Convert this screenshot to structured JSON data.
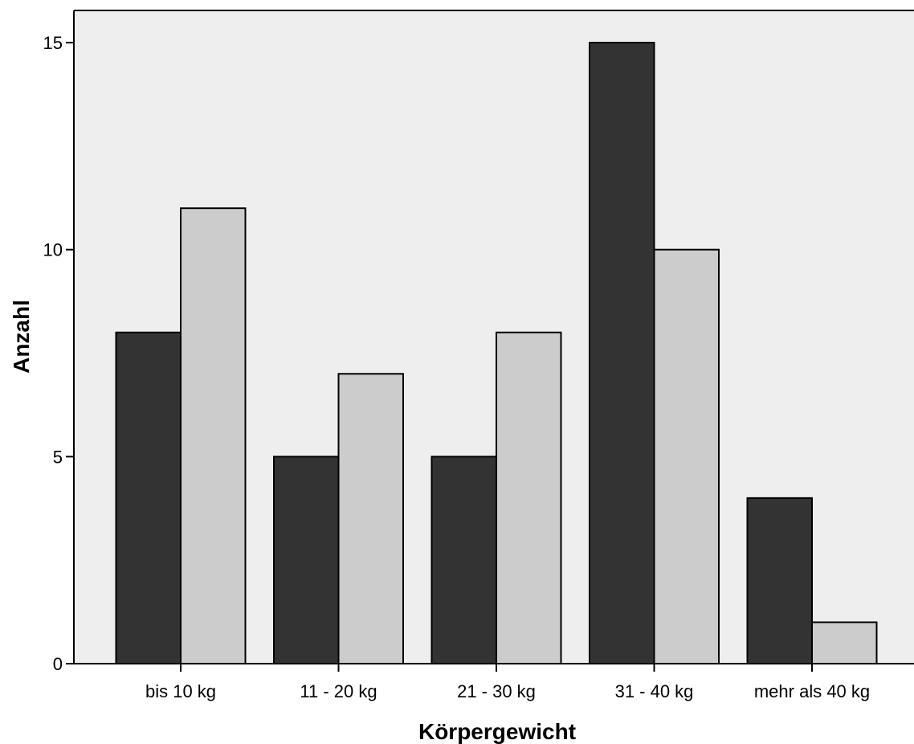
{
  "chart_data": {
    "type": "bar",
    "title": "",
    "xlabel": "Körpergewicht",
    "ylabel": "Anzahl",
    "categories": [
      "bis 10 kg",
      "11 - 20 kg",
      "21 - 30 kg",
      "31 - 40 kg",
      "mehr als 40 kg"
    ],
    "series": [
      {
        "values": [
          8,
          5,
          5,
          15,
          4
        ],
        "color": "#333333"
      },
      {
        "values": [
          11,
          7,
          8,
          10,
          1
        ],
        "color": "#cccccc"
      }
    ],
    "ylim": [
      0,
      15.8
    ],
    "yticks": [
      0,
      5,
      10,
      15
    ],
    "grid": false,
    "legend": "none",
    "plot_background": "#eeeeee",
    "bar_outline": "#000000"
  }
}
